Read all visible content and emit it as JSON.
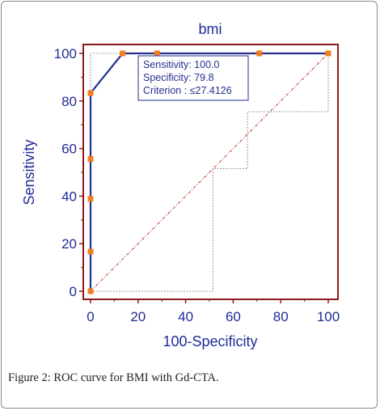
{
  "colors": {
    "axis_blue": "#1f2c96",
    "frame_red": "#8b1a1a",
    "curve_blue": "#25308f",
    "marker_orange": "#f07f1d",
    "diag_red": "#c0392b",
    "dotted_gray": "#555555"
  },
  "chart_data": {
    "type": "line",
    "title": "bmi",
    "xlabel": "100-Specificity",
    "ylabel": "Sensitivity",
    "xlim": [
      0,
      100
    ],
    "ylim": [
      0,
      100
    ],
    "xticks": [
      "0",
      "20",
      "40",
      "60",
      "80",
      "100"
    ],
    "yticks": [
      "0",
      "20",
      "40",
      "60",
      "80",
      "100"
    ],
    "grid": false,
    "series": [
      {
        "values_x": [
          0,
          0,
          0,
          0,
          0,
          13.5,
          28.0,
          71.0,
          100
        ],
        "values_y": [
          0,
          16.7,
          38.9,
          55.6,
          83.3,
          100,
          100,
          100,
          100
        ],
        "markers": true
      }
    ],
    "reference_line": {
      "x": [
        0,
        100
      ],
      "y": [
        0,
        100
      ]
    },
    "confidence_bounds": {
      "upper": {
        "x": [
          0,
          0,
          100
        ],
        "y": [
          0,
          100,
          100
        ]
      },
      "lower": [
        {
          "x": [
            0,
            51.5,
            51.5,
            66,
            66,
            100,
            100
          ],
          "y": [
            0,
            0,
            51.5,
            51.5,
            75.5,
            75.5,
            100
          ]
        }
      ]
    },
    "annotation": {
      "lines": [
        "Sensitivity: 100.0",
        "Specificity: 79.8",
        "Criterion : ≤27.4126"
      ]
    }
  },
  "caption": {
    "label": "Figure 2:",
    "text": " ROC curve for BMI with Gd-CTA."
  }
}
